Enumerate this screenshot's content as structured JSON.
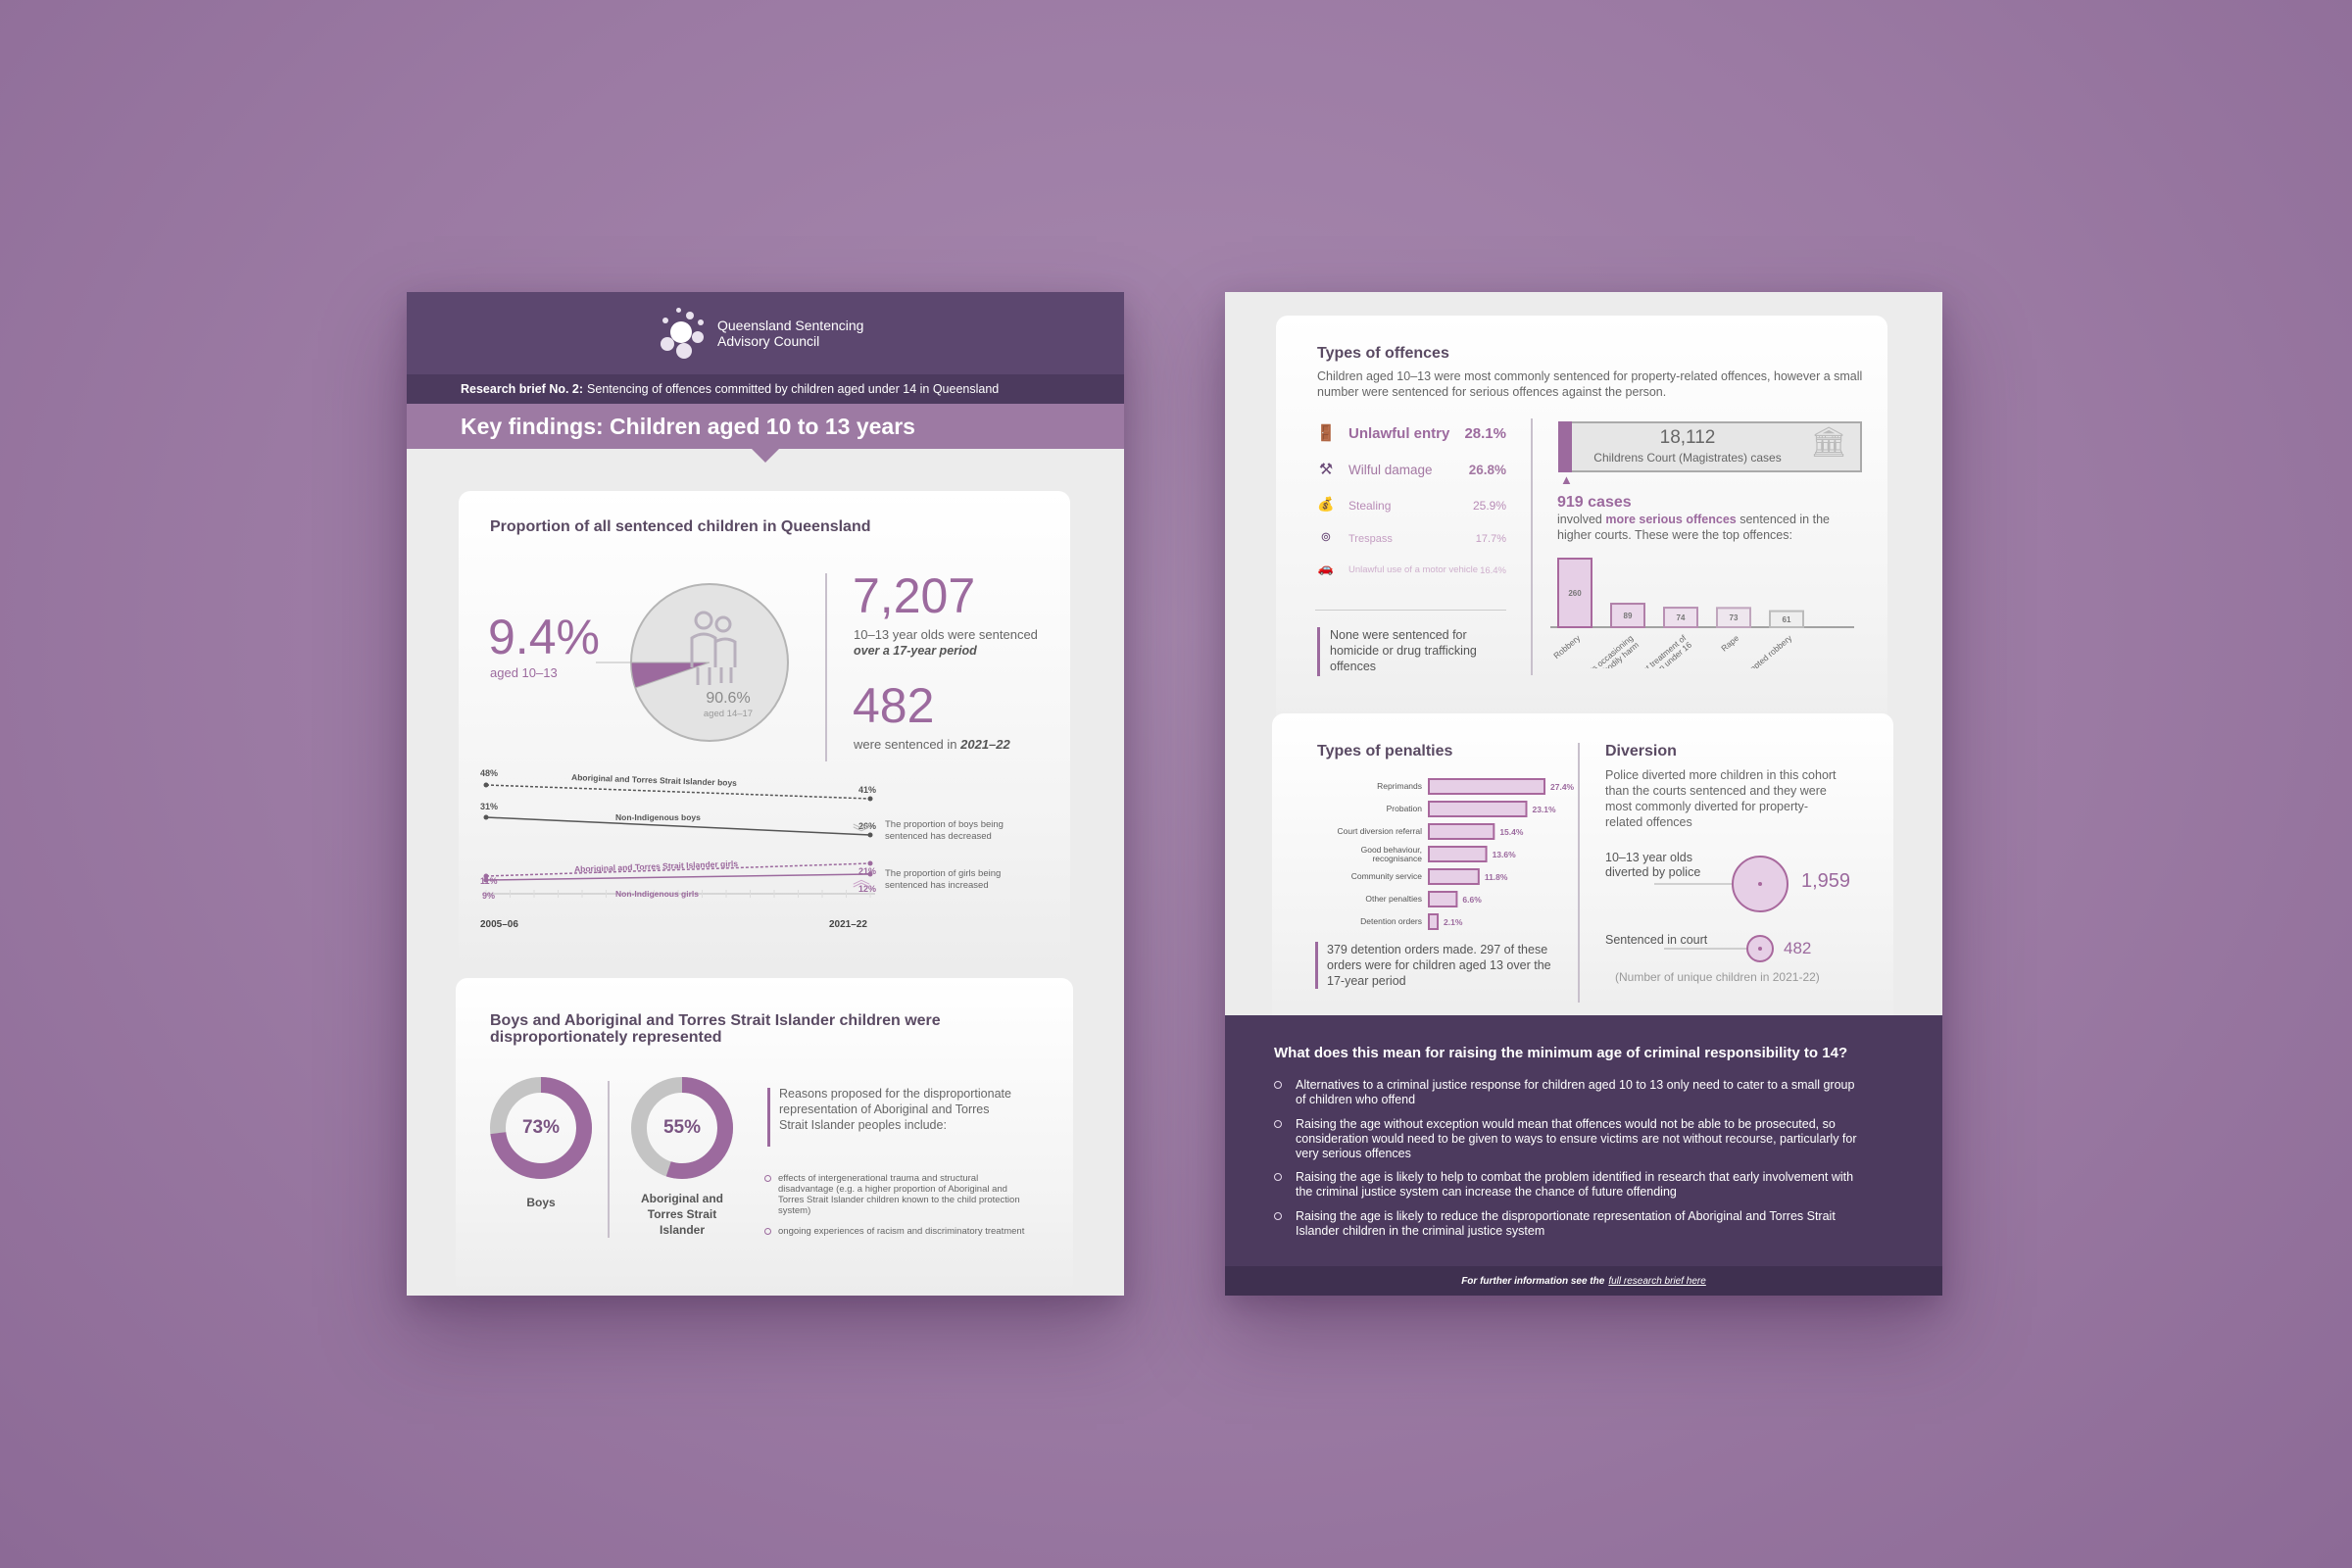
{
  "left": {
    "org": [
      "Queensland Sentencing",
      "Advisory Council"
    ],
    "brief_label": "Research brief No. 2:",
    "brief_text": "Sentencing of offences committed by children aged under 14 in Queensland",
    "key_findings": "Key findings: Children aged 10 to 13 years",
    "proportion": {
      "title": "Proportion of all sentenced children in Queensland",
      "pct_small": "9.4%",
      "pct_small_label": "aged 10–13",
      "pct_large": "90.6%",
      "pct_large_label": "aged 14–17",
      "stat1_value": "7,207",
      "stat1_text": "10–13 year olds were sentenced",
      "stat1_em": "over a 17-year period",
      "stat2_value": "482",
      "stat2_text": "were sentenced in",
      "stat2_em": "2021–22"
    },
    "trend": {
      "start": "2005–06",
      "end": "2021–22",
      "series": [
        {
          "name": "Aboriginal and Torres Strait Islander boys",
          "start": "48%",
          "end": "41%"
        },
        {
          "name": "Non-Indigenous boys",
          "start": "31%",
          "end": "26%"
        },
        {
          "name": "Aboriginal and Torres Strait Islander girls",
          "start": "11%",
          "end": "21%"
        },
        {
          "name": "Non-Indigenous girls",
          "start": "9%",
          "end": "12%"
        }
      ],
      "note_down": "The proportion of boys being sentenced has decreased",
      "note_up": "The proportion of girls being sentenced has increased"
    },
    "disprop": {
      "title": "Boys and Aboriginal and Torres Strait Islander children were disproportionately represented",
      "boys_pct": "73%",
      "boys_label": "Boys",
      "atsi_pct": "55%",
      "atsi_label": "Aboriginal and Torres Strait Islander",
      "reasons_intro": "Reasons proposed for the disproportionate representation of Aboriginal and Torres Strait Islander peoples include:",
      "reasons": [
        "effects of intergenerational trauma and structural disadvantage (e.g. a higher proportion of Aboriginal and Torres Strait Islander children known to the child protection system)",
        "ongoing experiences of racism and discriminatory treatment"
      ]
    }
  },
  "right": {
    "offences": {
      "title": "Types of offences",
      "intro": "Children aged 10–13 were most commonly sentenced for property-related offences, however a small number were sentenced for serious offences against the person.",
      "items": [
        {
          "label": "Unlawful entry",
          "pct": "28.1%"
        },
        {
          "label": "Wilful damage",
          "pct": "26.8%"
        },
        {
          "label": "Stealing",
          "pct": "25.9%"
        },
        {
          "label": "Trespass",
          "pct": "17.7%"
        },
        {
          "label": "Unlawful use of a motor vehicle",
          "pct": "16.4%"
        }
      ],
      "none_note": "None were sentenced for homicide or drug trafficking offences",
      "court_total": "18,112",
      "court_label": "Childrens Court (Magistrates) cases",
      "cases": "919 cases",
      "cases_text_a": "involved",
      "cases_text_b": "more serious offences",
      "cases_text_c": "sentenced in the higher courts. These were the top offences:",
      "top": [
        {
          "label": "Robbery",
          "value": 260
        },
        {
          "label": "Assaults occasioning bodily harm",
          "value": 89
        },
        {
          "label": "Indecent treatment of children under 16",
          "value": 74
        },
        {
          "label": "Rape",
          "value": 73
        },
        {
          "label": "Attempted robbery",
          "value": 61
        }
      ]
    },
    "penalties": {
      "title": "Types of penalties",
      "items": [
        {
          "label": "Reprimands",
          "value": 27.4,
          "text": "27.4%"
        },
        {
          "label": "Probation",
          "value": 23.1,
          "text": "23.1%"
        },
        {
          "label": "Court diversion referral",
          "value": 15.4,
          "text": "15.4%"
        },
        {
          "label": "Good behaviour, recognisance",
          "value": 13.6,
          "text": "13.6%"
        },
        {
          "label": "Community service",
          "value": 11.8,
          "text": "11.8%"
        },
        {
          "label": "Other penalties",
          "value": 6.6,
          "text": "6.6%"
        },
        {
          "label": "Detention orders",
          "value": 2.1,
          "text": "2.1%"
        }
      ],
      "note": "379 detention orders made. 297 of these orders were for children aged 13 over the 17-year period"
    },
    "diversion": {
      "title": "Diversion",
      "text": "Police diverted more children in this cohort than the courts sentenced and they were most commonly diverted for property-related offences",
      "police_label": "10–13 year olds diverted by police",
      "police_value": "1,959",
      "court_label": "Sentenced in court",
      "court_value": "482",
      "footnote": "(Number of unique children in 2021-22)"
    },
    "meaning": {
      "title": "What does this mean for raising the minimum age of criminal responsibility to 14?",
      "bullets": [
        "Alternatives to a criminal justice response for children aged 10 to 13 only need to cater to a small group of children who offend",
        "Raising the age without exception would mean that offences would not be able to be prosecuted, so consideration would need to be given to ways to ensure victims are not without recourse, particularly for very serious offences",
        "Raising the age is likely to help to combat the problem identified in research that early involvement with the criminal justice system can increase the chance of future offending",
        "Raising the age is likely to reduce the disproportionate representation of Aboriginal and Torres Strait Islander children in the criminal justice system"
      ]
    },
    "footer_a": "For further information see the",
    "footer_link": "full research brief here"
  },
  "colors": {
    "plum": "#9c6a9e",
    "header": "#5c476f",
    "dark": "#4c3a5e",
    "bg": "#9b7aa3"
  },
  "icons": [
    "logo-icon",
    "people-icon",
    "chevron-down-icon",
    "chevron-up-icon",
    "door-icon",
    "hammer-icon",
    "money-bag-icon",
    "trespass-icon",
    "car-icon",
    "courthouse-icon"
  ]
}
